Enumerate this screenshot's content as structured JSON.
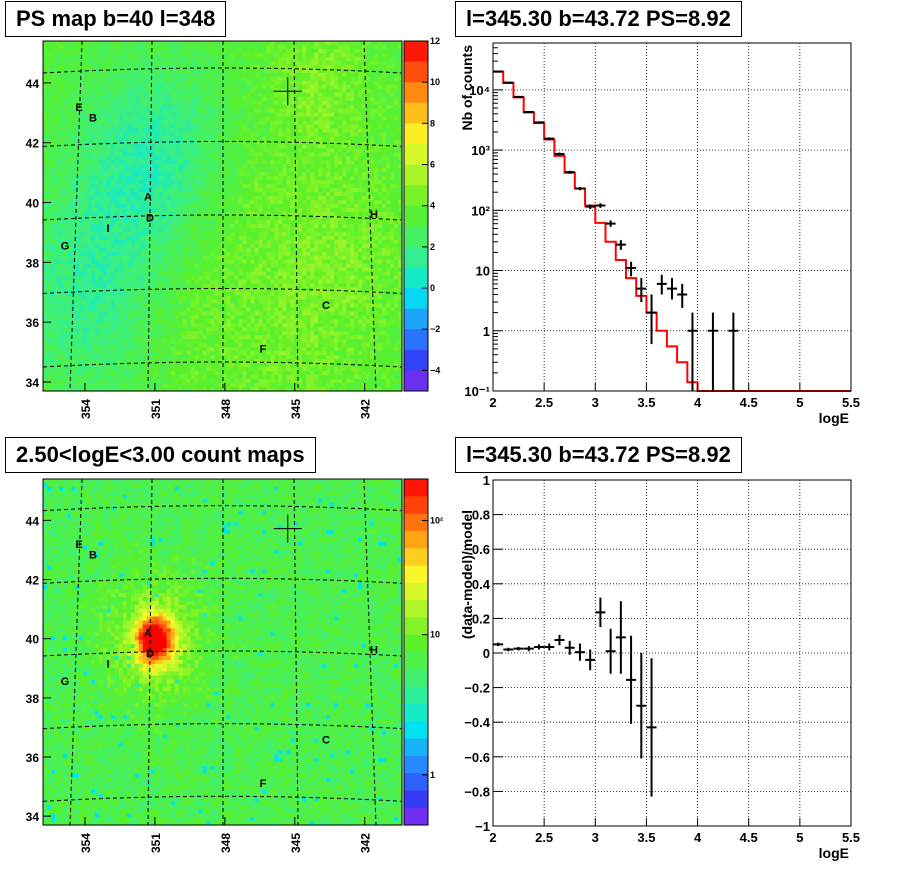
{
  "pads": {
    "tl_title": "PS map b=40 l=348",
    "tr_title": "l=345.30 b=43.72 PS=8.92",
    "bl_title": "2.50<logE<3.00 count maps",
    "br_title": "l=345.30 b=43.72 PS=8.92"
  },
  "chart_data": [
    {
      "type": "heatmap",
      "title": "PS map b=40 l=348",
      "x_ticks": [
        "354",
        "351",
        "348",
        "345",
        "342"
      ],
      "y_ticks": [
        "34",
        "36",
        "38",
        "40",
        "42",
        "44"
      ],
      "colorbar": {
        "ticks": [
          "−4",
          "−2",
          "0",
          "2",
          "4",
          "6",
          "8",
          "10",
          "12"
        ],
        "range": [
          -5,
          12
        ]
      },
      "source_labels": [
        "E",
        "B",
        "A",
        "D",
        "I",
        "G",
        "H",
        "C",
        "F"
      ],
      "marker": {
        "l": 345.3,
        "b": 43.72
      }
    },
    {
      "type": "line",
      "title": "l=345.30 b=43.72 PS=8.92",
      "xlabel": "logE",
      "ylabel": "Nb of counts",
      "xlim": [
        2,
        5.5
      ],
      "ylim": [
        0.1,
        60000
      ],
      "yscale": "log",
      "x_ticks": [
        "2",
        "2.5",
        "3",
        "3.5",
        "4",
        "4.5",
        "5",
        "5.5"
      ],
      "y_ticks": [
        "10⁻¹",
        "1",
        "10",
        "10²",
        "10³",
        "10⁴"
      ],
      "grid": true,
      "series": [
        {
          "kind": "model-histogram",
          "color": "#ff0000",
          "edges": [
            2.0,
            2.1,
            2.2,
            2.3,
            2.4,
            2.5,
            2.6,
            2.7,
            2.8,
            2.9,
            3.0,
            3.1,
            3.2,
            3.3,
            3.4,
            3.5,
            3.6,
            3.7,
            3.8,
            3.9,
            4.0,
            4.1,
            5.5
          ],
          "values": [
            20000,
            13000,
            7500,
            4200,
            2800,
            1500,
            800,
            420,
            230,
            120,
            62,
            30,
            15,
            7.5,
            3.8,
            2.0,
            1.0,
            0.55,
            0.3,
            0.14,
            0.1,
            0.1
          ]
        },
        {
          "kind": "data-points",
          "color": "#000000",
          "points": [
            {
              "x": 2.05,
              "y": 20200,
              "lo": 19800,
              "hi": 20600
            },
            {
              "x": 2.15,
              "y": 13200,
              "lo": 12900,
              "hi": 13500
            },
            {
              "x": 2.25,
              "y": 7650,
              "lo": 7450,
              "hi": 7850
            },
            {
              "x": 2.35,
              "y": 4300,
              "lo": 4150,
              "hi": 4450
            },
            {
              "x": 2.45,
              "y": 2890,
              "lo": 2780,
              "hi": 3000
            },
            {
              "x": 2.55,
              "y": 1550,
              "lo": 1480,
              "hi": 1630
            },
            {
              "x": 2.65,
              "y": 860,
              "lo": 820,
              "hi": 910
            },
            {
              "x": 2.75,
              "y": 430,
              "lo": 405,
              "hi": 455
            },
            {
              "x": 2.85,
              "y": 230,
              "lo": 215,
              "hi": 245
            },
            {
              "x": 2.95,
              "y": 115,
              "lo": 105,
              "hi": 125
            },
            {
              "x": 3.05,
              "y": 120,
              "lo": 110,
              "hi": 131
            },
            {
              "x": 3.15,
              "y": 60,
              "lo": 53,
              "hi": 68
            },
            {
              "x": 3.25,
              "y": 27,
              "lo": 22,
              "hi": 32
            },
            {
              "x": 3.35,
              "y": 11,
              "lo": 8,
              "hi": 14
            },
            {
              "x": 3.45,
              "y": 5,
              "lo": 3,
              "hi": 7.5
            },
            {
              "x": 3.55,
              "y": 2,
              "lo": 0.6,
              "hi": 4
            },
            {
              "x": 3.65,
              "y": 6,
              "lo": 4,
              "hi": 8.5
            },
            {
              "x": 3.75,
              "y": 5,
              "lo": 3.3,
              "hi": 7.5
            },
            {
              "x": 3.85,
              "y": 4,
              "lo": 2.4,
              "hi": 6
            },
            {
              "x": 3.95,
              "y": 1,
              "lo": 0.1,
              "hi": 2
            },
            {
              "x": 4.15,
              "y": 1,
              "lo": 0.1,
              "hi": 2
            },
            {
              "x": 4.35,
              "y": 1,
              "lo": 0.1,
              "hi": 2
            }
          ]
        }
      ]
    },
    {
      "type": "heatmap",
      "title": "2.50<logE<3.00 count maps",
      "x_ticks": [
        "354",
        "351",
        "348",
        "345",
        "342"
      ],
      "y_ticks": [
        "34",
        "36",
        "38",
        "40",
        "42",
        "44"
      ],
      "colorbar": {
        "scale": "log",
        "ticks": [
          "1",
          "10",
          "10²"
        ]
      },
      "source_labels": [
        "E",
        "B",
        "A",
        "D",
        "I",
        "G",
        "H",
        "C",
        "F"
      ],
      "marker": {
        "l": 345.3,
        "b": 43.72
      }
    },
    {
      "type": "scatter",
      "title": "l=345.30 b=43.72 PS=8.92",
      "xlabel": "logE",
      "ylabel": "(data-model)/model",
      "xlim": [
        2,
        5.5
      ],
      "ylim": [
        -1,
        1
      ],
      "x_ticks": [
        "2",
        "2.5",
        "3",
        "3.5",
        "4",
        "4.5",
        "5",
        "5.5"
      ],
      "y_ticks": [
        "−1",
        "−0.8",
        "−0.6",
        "−0.4",
        "−0.2",
        "0",
        "0.2",
        "0.4",
        "0.6",
        "0.8",
        "1"
      ],
      "grid": true,
      "points": [
        {
          "x": 2.05,
          "y": 0.05,
          "lo": 0.04,
          "hi": 0.06
        },
        {
          "x": 2.15,
          "y": 0.02,
          "lo": 0.01,
          "hi": 0.03
        },
        {
          "x": 2.25,
          "y": 0.025,
          "lo": 0.015,
          "hi": 0.035
        },
        {
          "x": 2.35,
          "y": 0.025,
          "lo": 0.01,
          "hi": 0.04
        },
        {
          "x": 2.45,
          "y": 0.035,
          "lo": 0.02,
          "hi": 0.05
        },
        {
          "x": 2.55,
          "y": 0.035,
          "lo": 0.015,
          "hi": 0.055
        },
        {
          "x": 2.65,
          "y": 0.075,
          "lo": 0.045,
          "hi": 0.105
        },
        {
          "x": 2.75,
          "y": 0.03,
          "lo": -0.01,
          "hi": 0.07
        },
        {
          "x": 2.85,
          "y": 0.005,
          "lo": -0.045,
          "hi": 0.055
        },
        {
          "x": 2.95,
          "y": -0.04,
          "lo": -0.1,
          "hi": 0.02
        },
        {
          "x": 3.05,
          "y": 0.235,
          "lo": 0.15,
          "hi": 0.32
        },
        {
          "x": 3.15,
          "y": 0.01,
          "lo": -0.12,
          "hi": 0.14
        },
        {
          "x": 3.25,
          "y": 0.09,
          "lo": -0.12,
          "hi": 0.3
        },
        {
          "x": 3.35,
          "y": -0.155,
          "lo": -0.41,
          "hi": 0.1
        },
        {
          "x": 3.45,
          "y": -0.305,
          "lo": -0.61,
          "hi": 0.0
        },
        {
          "x": 3.55,
          "y": -0.43,
          "lo": -0.83,
          "hi": -0.03
        }
      ]
    }
  ]
}
